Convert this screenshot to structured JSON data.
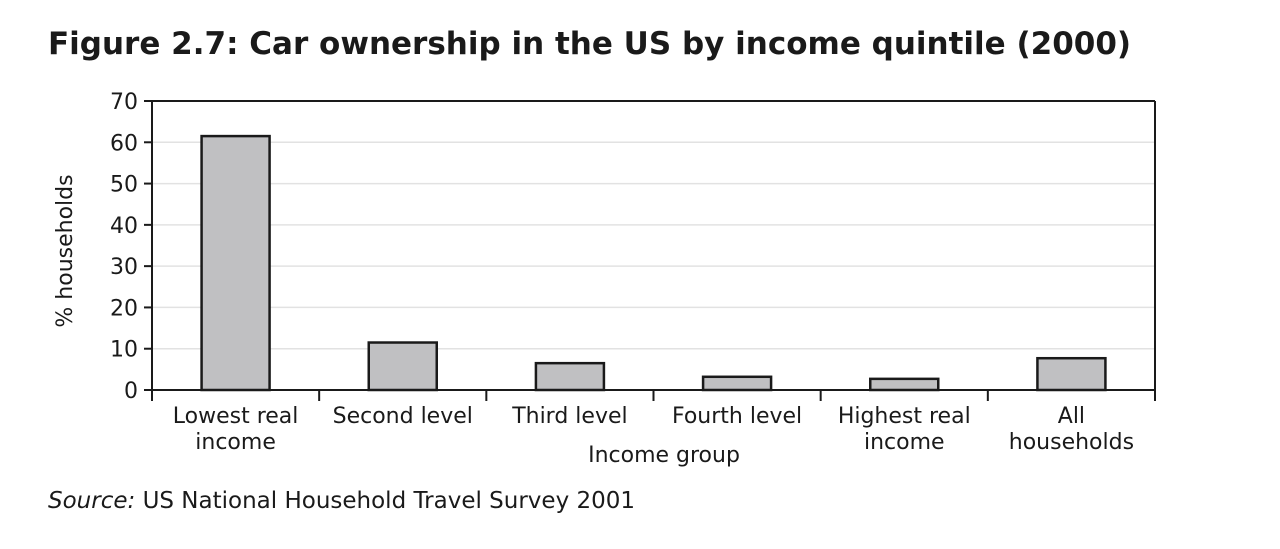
{
  "figure_title": "Figure 2.7: Car ownership in the US by income quintile (2000)",
  "source": {
    "prefix": "Source:",
    "text": "US National Household Travel Survey 2001"
  },
  "chart_data": {
    "type": "bar",
    "title": "",
    "xlabel": "Income group",
    "ylabel": "% households",
    "categories": [
      [
        "Lowest real",
        "income"
      ],
      [
        "Second level"
      ],
      [
        "Third level"
      ],
      [
        "Fourth level"
      ],
      [
        "Highest real",
        "income"
      ],
      [
        "All",
        "households"
      ]
    ],
    "values": [
      61.5,
      11.5,
      6.5,
      3.2,
      2.7,
      7.7
    ],
    "ylim": [
      0,
      70
    ],
    "yticks": [
      0,
      10,
      20,
      30,
      40,
      50,
      60,
      70
    ],
    "grid": true,
    "legend": "none",
    "colors": {
      "bar_fill": "#c0c0c2",
      "bar_stroke": "#1a1a1a",
      "grid": "#e2e2e2",
      "axis": "#1a1a1a"
    }
  }
}
